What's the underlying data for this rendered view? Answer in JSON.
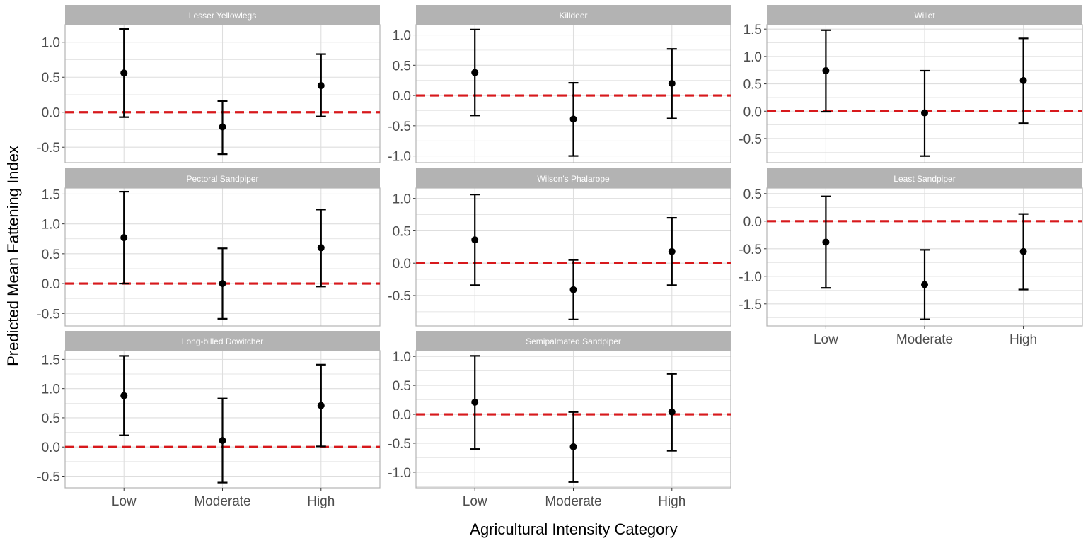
{
  "chart_data": {
    "type": "scatter",
    "style": "faceted point estimates with 95% error bars and dashed red reference line at 0",
    "xlabel": "Agricultural Intensity Category",
    "ylabel": "Predicted Mean Fattening Index",
    "categories": [
      "Low",
      "Moderate",
      "High"
    ],
    "reference_line": {
      "y": 0,
      "color": "#d7191c",
      "style": "dashed"
    },
    "colors": {
      "strip_bg": "#b3b3b3",
      "panel_border": "#b3b3b3",
      "grid": "#dedede",
      "point": "#000000",
      "reference": "#d7191c"
    },
    "grid": true,
    "facets": [
      {
        "title": "Lesser Yellowlegs",
        "ylim": [
          -0.72,
          1.25
        ],
        "yticks": [
          -0.5,
          0.0,
          0.5,
          1.0
        ],
        "ytick_labels": [
          "-0.5",
          "0.0",
          "0.5",
          "1.0"
        ],
        "estimates": [
          0.56,
          -0.21,
          0.38
        ],
        "lower": [
          -0.07,
          -0.6,
          -0.06
        ],
        "upper": [
          1.19,
          0.16,
          0.83
        ]
      },
      {
        "title": "Killdeer",
        "ylim": [
          -1.11,
          1.17
        ],
        "yticks": [
          -1.0,
          -0.5,
          0.0,
          0.5,
          1.0
        ],
        "ytick_labels": [
          "-1.0",
          "-0.5",
          "0.0",
          "0.5",
          "1.0"
        ],
        "estimates": [
          0.38,
          -0.39,
          0.2
        ],
        "lower": [
          -0.33,
          -1.0,
          -0.38
        ],
        "upper": [
          1.09,
          0.21,
          0.77
        ]
      },
      {
        "title": "Willet",
        "ylim": [
          -0.94,
          1.58
        ],
        "yticks": [
          -0.5,
          0.0,
          0.5,
          1.0,
          1.5
        ],
        "ytick_labels": [
          "-0.5",
          "0.0",
          "0.5",
          "1.0",
          "1.5"
        ],
        "estimates": [
          0.74,
          -0.03,
          0.56
        ],
        "lower": [
          -0.01,
          -0.82,
          -0.22
        ],
        "upper": [
          1.48,
          0.74,
          1.33
        ]
      },
      {
        "title": "Pectoral Sandpiper",
        "ylim": [
          -0.71,
          1.6
        ],
        "yticks": [
          -0.5,
          0.0,
          0.5,
          1.0,
          1.5
        ],
        "ytick_labels": [
          "-0.5",
          "0.0",
          "0.5",
          "1.0",
          "1.5"
        ],
        "estimates": [
          0.77,
          0.0,
          0.6
        ],
        "lower": [
          0.0,
          -0.59,
          -0.05
        ],
        "upper": [
          1.54,
          0.59,
          1.24
        ]
      },
      {
        "title": "Wilson's Phalarope",
        "ylim": [
          -0.97,
          1.16
        ],
        "yticks": [
          -0.5,
          0.0,
          0.5,
          1.0
        ],
        "ytick_labels": [
          "-0.5",
          "0.0",
          "0.5",
          "1.0"
        ],
        "estimates": [
          0.36,
          -0.41,
          0.18
        ],
        "lower": [
          -0.34,
          -0.87,
          -0.34
        ],
        "upper": [
          1.06,
          0.05,
          0.7
        ]
      },
      {
        "title": "Least Sandpiper",
        "ylim": [
          -1.9,
          0.6
        ],
        "yticks": [
          -1.5,
          -1.0,
          -0.5,
          0.0,
          0.5
        ],
        "ytick_labels": [
          "-1.5",
          "-1.0",
          "-0.5",
          "0.0",
          "0.5"
        ],
        "estimates": [
          -0.38,
          -1.15,
          -0.55
        ],
        "lower": [
          -1.21,
          -1.78,
          -1.24
        ],
        "upper": [
          0.45,
          -0.52,
          0.13
        ]
      },
      {
        "title": "Long-billed Dowitcher",
        "ylim": [
          -0.7,
          1.65
        ],
        "yticks": [
          -0.5,
          0.0,
          0.5,
          1.0,
          1.5
        ],
        "ytick_labels": [
          "-0.5",
          "0.0",
          "0.5",
          "1.0",
          "1.5"
        ],
        "estimates": [
          0.88,
          0.11,
          0.71
        ],
        "lower": [
          0.2,
          -0.61,
          0.01
        ],
        "upper": [
          1.56,
          0.83,
          1.41
        ]
      },
      {
        "title": "Semipalmated Sandpiper",
        "ylim": [
          -1.27,
          1.1
        ],
        "yticks": [
          -1.0,
          -0.5,
          0.0,
          0.5,
          1.0
        ],
        "ytick_labels": [
          "-1.0",
          "-0.5",
          "0.0",
          "0.5",
          "1.0"
        ],
        "estimates": [
          0.21,
          -0.56,
          0.04
        ],
        "lower": [
          -0.6,
          -1.17,
          -0.63
        ],
        "upper": [
          1.01,
          0.04,
          0.7
        ]
      }
    ]
  }
}
